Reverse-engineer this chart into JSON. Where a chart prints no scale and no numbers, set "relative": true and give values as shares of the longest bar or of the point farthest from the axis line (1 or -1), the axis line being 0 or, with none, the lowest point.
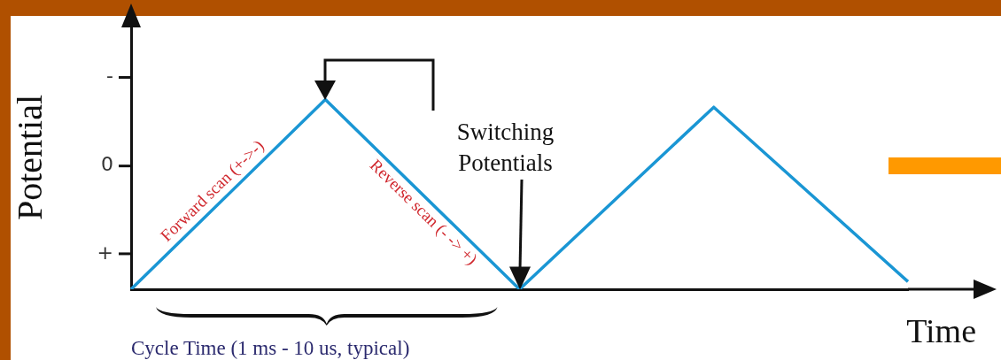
{
  "chart_data": {
    "type": "line",
    "ylabel": "Potential",
    "xlabel": "Time",
    "categories": [
      null,
      null,
      null,
      null,
      null
    ],
    "series": [
      {
        "color": "#1a96d4",
        "values": [
          0,
          1,
          0,
          0.96,
          0.04
        ]
      }
    ],
    "relative": true,
    "grid": false,
    "legend": false,
    "marker": "none",
    "line_style": "solid",
    "annotations": [
      "Forward scan (+->-)",
      "Reverse scan (- -> +)",
      "Switching Potentials",
      "Cycle Time (1 ms - 10 us, typical)",
      "-",
      "0",
      "+"
    ]
  }
}
